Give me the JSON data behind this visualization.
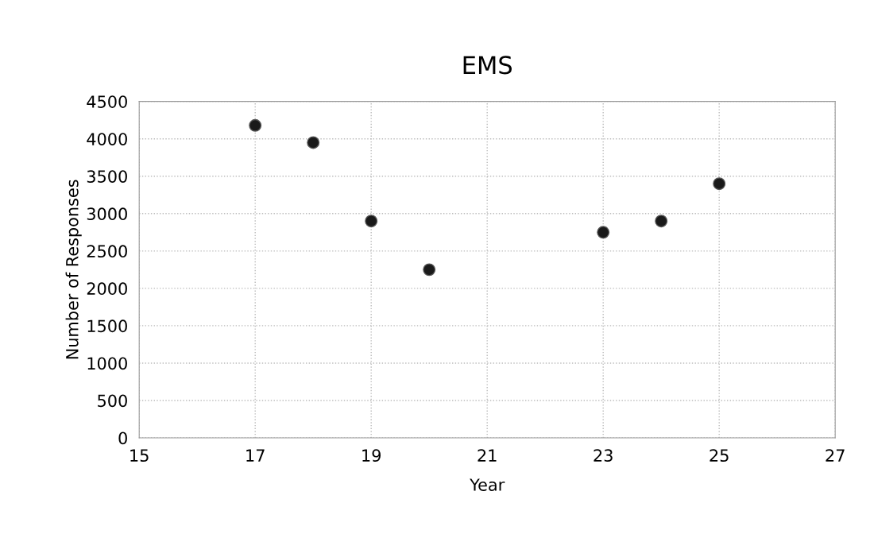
{
  "chart_data": {
    "type": "scatter",
    "title": "EMS",
    "xlabel": "Year",
    "ylabel": "Number of Responses",
    "x": [
      17,
      18,
      19,
      20,
      23,
      24,
      25
    ],
    "values": [
      4180,
      3950,
      2900,
      2250,
      2750,
      2900,
      3400
    ],
    "color": "#1a1a1a",
    "marker": "circle",
    "xlim": [
      15,
      27
    ],
    "xticks": [
      15,
      17,
      19,
      21,
      23,
      25,
      27
    ],
    "ylim": [
      0,
      4500
    ],
    "yticks": [
      0,
      500,
      1000,
      1500,
      2000,
      2500,
      3000,
      3500,
      4000,
      4500
    ],
    "grid": true,
    "legend": false
  }
}
